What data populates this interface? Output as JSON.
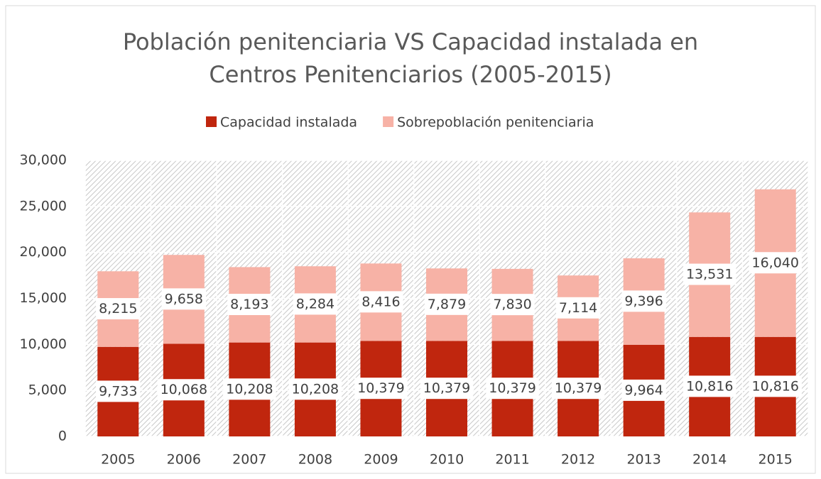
{
  "chart_data": {
    "type": "stacked_bar",
    "title": "Población penitenciaria VS Capacidad instalada en Centros Penitenciarios (2005-2015)",
    "categories": [
      "2005",
      "2006",
      "2007",
      "2008",
      "2009",
      "2010",
      "2011",
      "2012",
      "2013",
      "2014",
      "2015"
    ],
    "series": [
      {
        "name": "Capacidad instalada",
        "color": "#c0260e",
        "values": [
          9733,
          10068,
          10208,
          10208,
          10379,
          10379,
          10379,
          10379,
          9964,
          10816,
          10816
        ],
        "value_labels": [
          "9,733",
          "10,068",
          "10,208",
          "10,208",
          "10,379",
          "10,379",
          "10,379",
          "10,379",
          "9,964",
          "10,816",
          "10,816"
        ]
      },
      {
        "name": "Sobrepoblación penitenciaria",
        "color": "#f7b2a6",
        "values": [
          8215,
          9658,
          8193,
          8284,
          8416,
          7879,
          7830,
          7114,
          9396,
          13531,
          16040
        ],
        "value_labels": [
          "8,215",
          "9,658",
          "8,193",
          "8,284",
          "8,416",
          "7,879",
          "7,830",
          "7,114",
          "9,396",
          "13,531",
          "16,040"
        ]
      }
    ],
    "ylim": [
      0,
      30000
    ],
    "yticks": [
      0,
      {
        "value": 5000,
        "label": "5,000"
      },
      {
        "value": 10000,
        "label": "10,000"
      },
      {
        "value": 15000,
        "label": "15,000"
      },
      {
        "value": 20000,
        "label": "20,000"
      },
      {
        "value": 25000,
        "label": "25,000"
      },
      {
        "value": 30000,
        "label": "30,000"
      }
    ],
    "grid": true,
    "legend": "top"
  }
}
